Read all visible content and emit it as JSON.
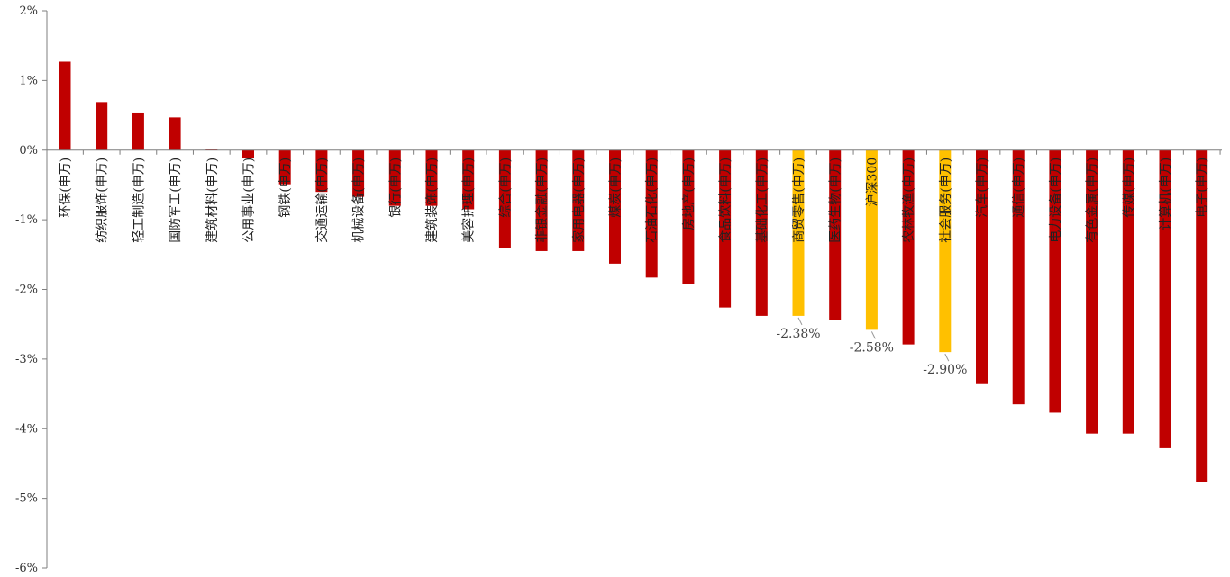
{
  "chart_data": {
    "type": "bar",
    "title": "",
    "xlabel": "",
    "ylabel": "",
    "ylim": [
      -6,
      2
    ],
    "yticks": [
      2,
      1,
      0,
      -1,
      -2,
      -3,
      -4,
      -5,
      -6
    ],
    "ytick_labels": [
      "2%",
      "1%",
      "0%",
      "-1%",
      "-2%",
      "-3%",
      "-4%",
      "-5%",
      "-6%"
    ],
    "grid": false,
    "legend": "none",
    "categories": [
      "环保(申万)",
      "纺织服饰(申万)",
      "轻工制造(申万)",
      "国防军工(申万)",
      "建筑材料(申万)",
      "公用事业(申万)",
      "钢铁(申万)",
      "交通运输(申万)",
      "机械设备(申万)",
      "银行(申万)",
      "建筑装饰(申万)",
      "美容护理(申万)",
      "综合(申万)",
      "非银金融(申万)",
      "家用电器(申万)",
      "煤炭(申万)",
      "石油石化(申万)",
      "房地产(申万)",
      "食品饮料(申万)",
      "基础化工(申万)",
      "商贸零售(申万)",
      "医药生物(申万)",
      "沪深300",
      "农林牧渔(申万)",
      "社会服务(申万)",
      "汽车(申万)",
      "通信(申万)",
      "电力设备(申万)",
      "有色金属(申万)",
      "传媒(申万)",
      "计算机(申万)",
      "电子(申万)"
    ],
    "values": [
      1.27,
      0.69,
      0.54,
      0.47,
      0.01,
      -0.12,
      -0.49,
      -0.6,
      -0.67,
      -0.8,
      -0.8,
      -0.85,
      -1.4,
      -1.45,
      -1.45,
      -1.63,
      -1.83,
      -1.92,
      -2.26,
      -2.38,
      -2.38,
      -2.44,
      -2.58,
      -2.79,
      -2.9,
      -3.36,
      -3.65,
      -3.77,
      -4.07,
      -4.07,
      -4.28,
      -4.77
    ],
    "highlight_indices": [
      20,
      22,
      24
    ],
    "annotations": [
      {
        "index": 20,
        "text": "-2.38%"
      },
      {
        "index": 22,
        "text": "-2.58%"
      },
      {
        "index": 24,
        "text": "-2.90%"
      }
    ],
    "colors": {
      "default": "#C00000",
      "highlight": "#FFC000",
      "axis": "#7F7F7F"
    }
  }
}
